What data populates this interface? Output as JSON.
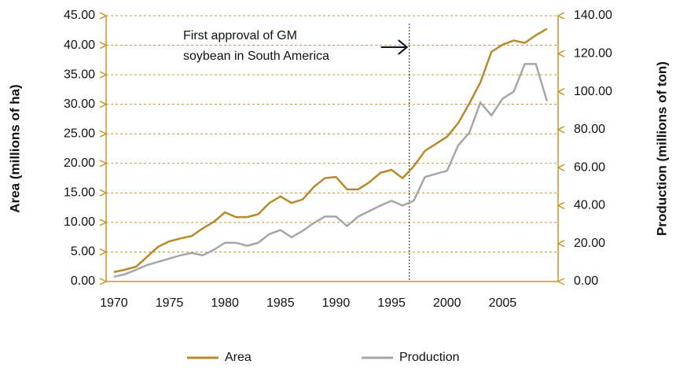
{
  "chart_data": {
    "type": "line",
    "y_label": "Area (millions of ha)",
    "y2_label": "Production (millions of ton)",
    "x": [
      1970,
      1971,
      1972,
      1973,
      1974,
      1975,
      1976,
      1977,
      1978,
      1979,
      1980,
      1981,
      1982,
      1983,
      1984,
      1985,
      1986,
      1987,
      1988,
      1989,
      1990,
      1991,
      1992,
      1993,
      1994,
      1995,
      1996,
      1997,
      1998,
      1999,
      2000,
      2001,
      2002,
      2003,
      2004,
      2005,
      2006,
      2007,
      2008,
      2009
    ],
    "series": [
      {
        "name": "Area",
        "color": "#b8892b",
        "values": [
          1.6,
          2.0,
          2.5,
          4.2,
          5.9,
          6.8,
          7.3,
          7.7,
          9.0,
          10.1,
          11.7,
          10.9,
          10.9,
          11.4,
          13.3,
          14.4,
          13.3,
          13.9,
          16.0,
          17.5,
          17.7,
          15.6,
          15.6,
          16.8,
          18.4,
          18.9,
          17.5,
          19.5,
          22.1,
          23.3,
          24.5,
          26.8,
          30.1,
          33.7,
          38.9,
          40.1,
          40.8,
          40.4,
          41.7,
          42.8
        ]
      },
      {
        "name": "Production",
        "color": "#a6a6a6",
        "axis": "y2",
        "values": [
          2.5,
          3.8,
          6.2,
          8.7,
          10.4,
          12.1,
          13.8,
          15.0,
          13.8,
          16.7,
          20.4,
          20.4,
          18.8,
          20.4,
          25.0,
          27.1,
          23.3,
          26.7,
          30.8,
          34.2,
          34.2,
          29.2,
          34.2,
          37.1,
          40.0,
          42.5,
          40.0,
          42.5,
          55.0,
          56.7,
          58.3,
          71.7,
          78.3,
          94.2,
          87.5,
          96.3,
          100.0,
          114.6,
          114.6,
          95.0
        ]
      }
    ],
    "xlim": [
      1969.3,
      2010
    ],
    "xticks": [
      1970,
      1975,
      1980,
      1985,
      1990,
      1995,
      2000,
      2005
    ],
    "ylim": [
      0,
      45
    ],
    "yticks": [
      {
        "value": 0,
        "label": "0.00"
      },
      {
        "value": 5,
        "label": "5.00"
      },
      {
        "value": 10,
        "label": "10.00"
      },
      {
        "value": 15,
        "label": "15.00"
      },
      {
        "value": 20,
        "label": "20.00"
      },
      {
        "value": 25,
        "label": "25.00"
      },
      {
        "value": 30,
        "label": "30.00"
      },
      {
        "value": 35,
        "label": "35.00"
      },
      {
        "value": 40,
        "label": "40.00"
      },
      {
        "value": 45,
        "label": "45.00"
      }
    ],
    "y2lim": [
      0,
      140
    ],
    "y2ticks": [
      {
        "value": 0,
        "label": "0.00"
      },
      {
        "value": 20,
        "label": "20.00"
      },
      {
        "value": 40,
        "label": "40.00"
      },
      {
        "value": 60,
        "label": "60.00"
      },
      {
        "value": 80,
        "label": "80.00"
      },
      {
        "value": 100,
        "label": "100.00"
      },
      {
        "value": 120,
        "label": "120.00"
      },
      {
        "value": 140,
        "label": "140.00"
      }
    ],
    "grid": true,
    "axis_color": "#c9962b",
    "annotation": {
      "lines": [
        "First approval of GM",
        "soybean in South America"
      ],
      "x": 1996.6
    },
    "legend": "bottom"
  }
}
